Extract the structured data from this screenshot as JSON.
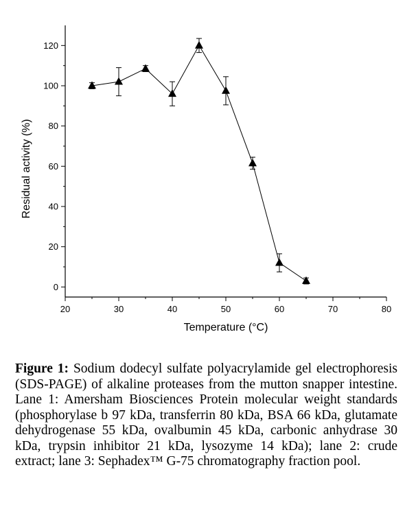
{
  "chart_data": {
    "type": "line",
    "title": "",
    "xlabel": "Temperature (°C)",
    "ylabel": "Residual activity (%)",
    "xlim": [
      20,
      80
    ],
    "ylim": [
      -5,
      130
    ],
    "xticks": [
      20,
      30,
      40,
      50,
      60,
      70,
      80
    ],
    "yticks": [
      0,
      20,
      40,
      60,
      80,
      100,
      120
    ],
    "marker": "triangle",
    "grid": false,
    "series": [
      {
        "x": [
          25,
          30,
          35,
          40,
          45,
          50,
          55,
          60,
          65
        ],
        "y": [
          100,
          102,
          108.5,
          96,
          120,
          97.5,
          61.5,
          12,
          3
        ],
        "err": [
          1.5,
          7,
          1.5,
          6,
          3.5,
          7,
          3,
          4.5,
          1.5
        ]
      }
    ]
  },
  "caption": {
    "label": "Figure 1:",
    "text": "Sodium dodecyl sulfate polyacrylamide gel electrophoresis (SDS-PAGE) of alkaline proteases from the mutton snapper intestine. Lane 1: Amersham Biosciences Protein molecular weight standards (phosphorylase b 97 kDa, transferrin 80 kDa, BSA 66 kDa, glutamate dehydrogenase 55 kDa, ovalbumin 45 kDa, carbonic anhydrase 30 kDa, trypsin inhibitor 21 kDa, lysozyme 14 kDa); lane 2: crude extract; lane 3: Sephadex™ G-75 chromatography fraction pool."
  }
}
